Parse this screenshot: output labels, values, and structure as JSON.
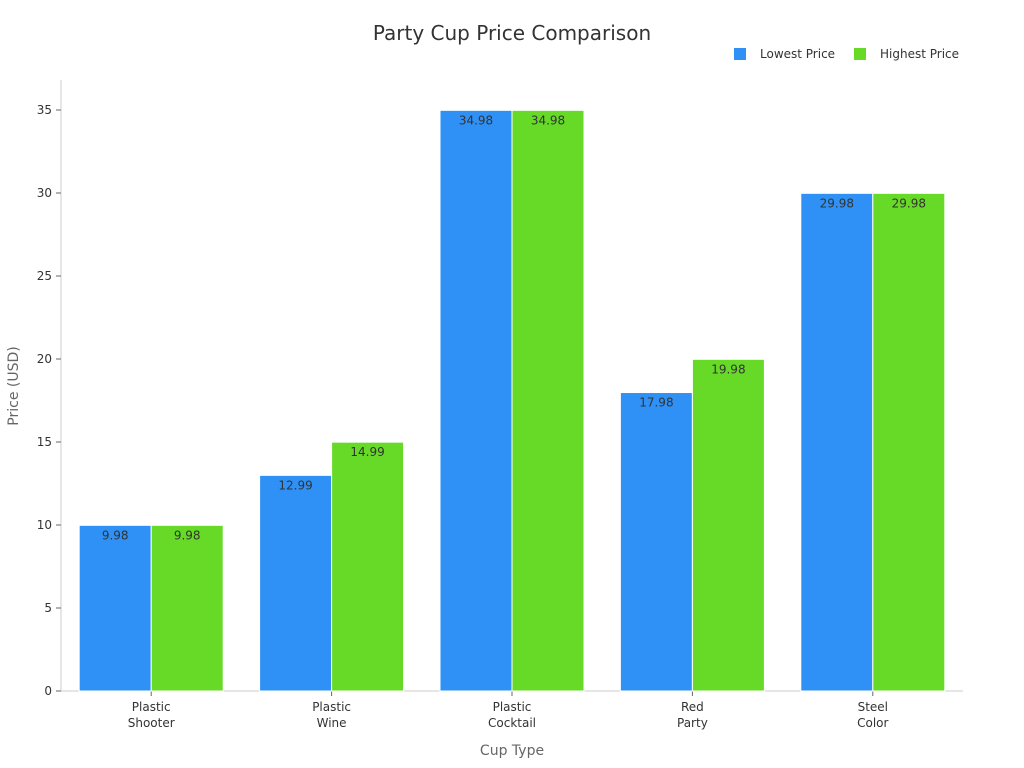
{
  "chart_data": {
    "type": "bar",
    "title": "Party Cup Price Comparison",
    "xlabel": "Cup Type",
    "ylabel": "Price (USD)",
    "categories": [
      [
        "Plastic",
        "Shooter"
      ],
      [
        "Plastic",
        "Wine"
      ],
      [
        "Plastic",
        "Cocktail"
      ],
      [
        "Red",
        "Party"
      ],
      [
        "Steel",
        "Color"
      ]
    ],
    "series": [
      {
        "name": "Lowest Price",
        "color": "#2f91f5",
        "values": [
          9.98,
          12.99,
          34.98,
          17.98,
          29.98
        ]
      },
      {
        "name": "Highest Price",
        "color": "#66da26",
        "values": [
          9.98,
          14.99,
          34.98,
          19.98,
          29.98
        ]
      }
    ],
    "ylim": [
      0,
      35
    ],
    "yticks": [
      0,
      5,
      10,
      15,
      20,
      25,
      30,
      35
    ],
    "grid": false,
    "legend_position": "top-right",
    "data_labels": true
  }
}
